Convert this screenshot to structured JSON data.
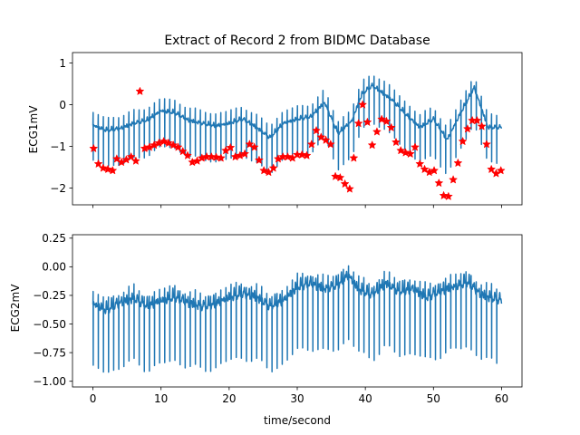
{
  "figure": {
    "title": "Extract of Record 2 from BIDMC Database",
    "xlabel": "time/second"
  },
  "colors": {
    "line": "#1f77b4",
    "marker": "#ff0000",
    "axes": "#000000",
    "background": "#ffffff"
  },
  "chart_data": [
    {
      "type": "line",
      "title": "Extract of Record 2 from BIDMC Database",
      "xlabel": "",
      "ylabel": "ECG1mV",
      "xlim": [
        -3.0,
        63.0
      ],
      "ylim": [
        -2.4,
        1.25
      ],
      "x_ticks": [
        0,
        10,
        20,
        30,
        40,
        50,
        60
      ],
      "x_tick_labels_shown": false,
      "y_ticks": [
        1,
        0,
        -1,
        -2
      ],
      "y_tick_labels": [
        "1",
        "0",
        "−1",
        "−2"
      ],
      "duration_s": 60,
      "beats": 80,
      "grid": false,
      "series": [
        {
          "style": "line",
          "baseline_knots": [
            [
              0,
              -0.5
            ],
            [
              2,
              -0.62
            ],
            [
              4,
              -0.58
            ],
            [
              6,
              -0.45
            ],
            [
              8,
              -0.38
            ],
            [
              10,
              -0.15
            ],
            [
              12,
              -0.2
            ],
            [
              14,
              -0.38
            ],
            [
              16,
              -0.45
            ],
            [
              18,
              -0.52
            ],
            [
              20,
              -0.45
            ],
            [
              22,
              -0.35
            ],
            [
              24,
              -0.55
            ],
            [
              26,
              -0.8
            ],
            [
              28,
              -0.45
            ],
            [
              30,
              -0.35
            ],
            [
              32,
              -0.3
            ],
            [
              34,
              0.05
            ],
            [
              36,
              -0.7
            ],
            [
              38,
              -0.4
            ],
            [
              39.5,
              0.25
            ],
            [
              41,
              0.45
            ],
            [
              44,
              0.1
            ],
            [
              46,
              -0.25
            ],
            [
              48,
              -0.55
            ],
            [
              50,
              -0.35
            ],
            [
              52,
              -0.85
            ],
            [
              54,
              -0.2
            ],
            [
              56,
              0.4
            ],
            [
              58,
              -0.55
            ],
            [
              60,
              -0.55
            ]
          ],
          "peak_height_mV": 0.3,
          "trough_depth_mV": 0.85
        },
        {
          "style": "markers",
          "marker": "star",
          "points": [
            [
              0.1,
              -1.05
            ],
            [
              0.8,
              -1.42
            ],
            [
              1.5,
              -1.52
            ],
            [
              2.2,
              -1.55
            ],
            [
              2.9,
              -1.58
            ],
            [
              3.5,
              -1.3
            ],
            [
              4.2,
              -1.38
            ],
            [
              4.9,
              -1.32
            ],
            [
              5.6,
              -1.25
            ],
            [
              6.3,
              -1.35
            ],
            [
              6.9,
              0.32
            ],
            [
              7.6,
              -1.05
            ],
            [
              8.3,
              -1.02
            ],
            [
              9.0,
              -0.97
            ],
            [
              9.7,
              -0.92
            ],
            [
              10.4,
              -0.88
            ],
            [
              11.1,
              -0.92
            ],
            [
              11.8,
              -0.97
            ],
            [
              12.5,
              -1.02
            ],
            [
              13.2,
              -1.12
            ],
            [
              13.9,
              -1.22
            ],
            [
              14.6,
              -1.38
            ],
            [
              15.3,
              -1.35
            ],
            [
              16.0,
              -1.28
            ],
            [
              16.7,
              -1.25
            ],
            [
              17.4,
              -1.25
            ],
            [
              18.1,
              -1.26
            ],
            [
              18.8,
              -1.28
            ],
            [
              19.5,
              -1.1
            ],
            [
              20.2,
              -1.03
            ],
            [
              20.9,
              -1.25
            ],
            [
              21.6,
              -1.22
            ],
            [
              22.3,
              -1.18
            ],
            [
              23.0,
              -0.95
            ],
            [
              23.7,
              -1.02
            ],
            [
              24.4,
              -1.33
            ],
            [
              25.1,
              -1.58
            ],
            [
              25.8,
              -1.62
            ],
            [
              26.5,
              -1.52
            ],
            [
              27.2,
              -1.3
            ],
            [
              27.9,
              -1.25
            ],
            [
              28.6,
              -1.25
            ],
            [
              29.3,
              -1.28
            ],
            [
              30.0,
              -1.2
            ],
            [
              30.7,
              -1.2
            ],
            [
              31.4,
              -1.22
            ],
            [
              32.1,
              -0.95
            ],
            [
              32.8,
              -0.62
            ],
            [
              33.5,
              -0.78
            ],
            [
              34.2,
              -0.85
            ],
            [
              34.9,
              -0.95
            ],
            [
              35.6,
              -1.72
            ],
            [
              36.3,
              -1.75
            ],
            [
              37.0,
              -1.9
            ],
            [
              37.7,
              -2.02
            ],
            [
              38.3,
              -1.28
            ],
            [
              39.0,
              -0.45
            ],
            [
              39.6,
              0.0
            ],
            [
              40.3,
              -0.42
            ],
            [
              41.0,
              -0.97
            ],
            [
              41.7,
              -0.65
            ],
            [
              42.4,
              -0.35
            ],
            [
              43.1,
              -0.4
            ],
            [
              43.8,
              -0.55
            ],
            [
              44.5,
              -0.9
            ],
            [
              45.2,
              -1.1
            ],
            [
              45.9,
              -1.15
            ],
            [
              46.6,
              -1.18
            ],
            [
              47.3,
              -1.02
            ],
            [
              48.0,
              -1.42
            ],
            [
              48.7,
              -1.55
            ],
            [
              49.4,
              -1.62
            ],
            [
              50.1,
              -1.58
            ],
            [
              50.8,
              -1.88
            ],
            [
              51.5,
              -2.18
            ],
            [
              52.2,
              -2.2
            ],
            [
              52.9,
              -1.8
            ],
            [
              53.6,
              -1.4
            ],
            [
              54.3,
              -0.88
            ],
            [
              55.0,
              -0.58
            ],
            [
              55.7,
              -0.38
            ],
            [
              56.4,
              -0.38
            ],
            [
              57.1,
              -0.52
            ],
            [
              57.8,
              -0.95
            ],
            [
              58.5,
              -1.55
            ],
            [
              59.2,
              -1.65
            ],
            [
              59.9,
              -1.58
            ]
          ]
        }
      ]
    },
    {
      "type": "line",
      "xlabel": "time/second",
      "ylabel": "ECG2mV",
      "xlim": [
        -3.0,
        63.0
      ],
      "ylim": [
        -1.05,
        0.28
      ],
      "x_ticks": [
        0,
        10,
        20,
        30,
        40,
        50,
        60
      ],
      "x_tick_labels": [
        "0",
        "10",
        "20",
        "30",
        "40",
        "50",
        "60"
      ],
      "y_ticks": [
        0.25,
        0.0,
        -0.25,
        -0.5,
        -0.75,
        -1.0
      ],
      "y_tick_labels": [
        "0.25",
        "0.00",
        "−0.25",
        "−0.50",
        "−0.75",
        "−1.00"
      ],
      "duration_s": 60,
      "beats": 80,
      "grid": false,
      "series": [
        {
          "style": "line",
          "baseline_knots": [
            [
              0,
              -0.33
            ],
            [
              2,
              -0.38
            ],
            [
              4,
              -0.32
            ],
            [
              6,
              -0.28
            ],
            [
              8,
              -0.35
            ],
            [
              10,
              -0.3
            ],
            [
              12,
              -0.27
            ],
            [
              14,
              -0.32
            ],
            [
              16,
              -0.35
            ],
            [
              18,
              -0.33
            ],
            [
              20,
              -0.27
            ],
            [
              22,
              -0.24
            ],
            [
              24,
              -0.27
            ],
            [
              26,
              -0.35
            ],
            [
              28,
              -0.3
            ],
            [
              30,
              -0.18
            ],
            [
              32,
              -0.15
            ],
            [
              34,
              -0.2
            ],
            [
              36,
              -0.16
            ],
            [
              37.5,
              -0.08
            ],
            [
              39,
              -0.2
            ],
            [
              41,
              -0.25
            ],
            [
              43,
              -0.15
            ],
            [
              45,
              -0.22
            ],
            [
              47,
              -0.2
            ],
            [
              49,
              -0.27
            ],
            [
              51,
              -0.22
            ],
            [
              53,
              -0.18
            ],
            [
              55,
              -0.14
            ],
            [
              57,
              -0.25
            ],
            [
              60,
              -0.3
            ]
          ],
          "peak_height_mV": 0.1,
          "trough_depth_mV": 0.55
        }
      ]
    }
  ]
}
